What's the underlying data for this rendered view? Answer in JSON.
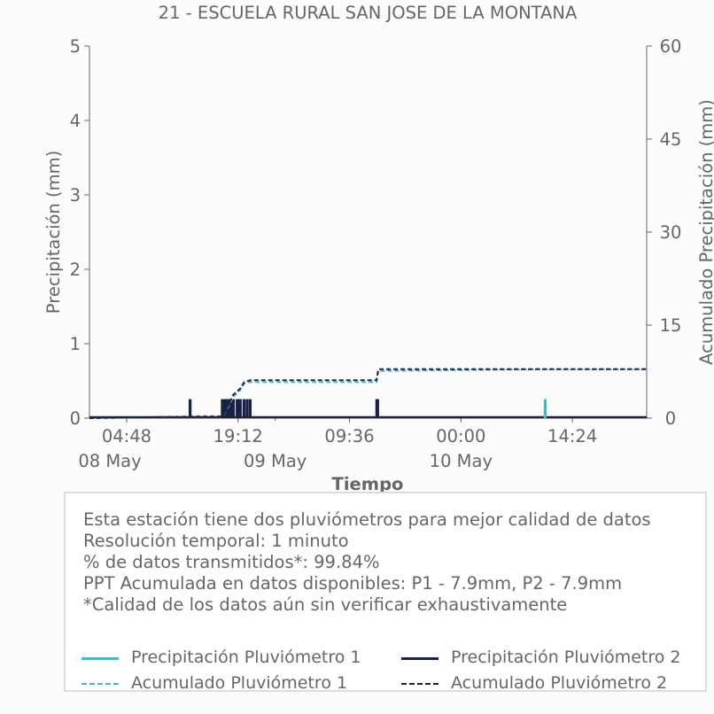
{
  "chart_data": {
    "type": "bar",
    "title": "21 - ESCUELA RURAL SAN JOSE DE LA MONTANA",
    "xlabel": "Tiempo",
    "ylabel": "Precipitación (mm)",
    "y2label": "Acumulado Precipitación (mm)",
    "ylim": [
      0,
      5
    ],
    "y2lim": [
      0,
      60
    ],
    "yticks": [
      0,
      1,
      2,
      3,
      4,
      5
    ],
    "y2ticks": [
      0,
      15,
      30,
      45,
      60
    ],
    "xlim": [
      "2024-05-08 00:00",
      "2024-05-11 00:00"
    ],
    "xtick_labels": [
      {
        "time": "2024-05-08 04:48",
        "label": "04:48",
        "date_label": "08 May"
      },
      {
        "time": "2024-05-08 19:12",
        "label": "19:12",
        "date_label": "09 May"
      },
      {
        "time": "2024-05-09 09:36",
        "label": "09:36",
        "date_label": ""
      },
      {
        "time": "2024-05-10 00:00",
        "label": "00:00",
        "date_label": "10 May"
      },
      {
        "time": "2024-05-10 14:24",
        "label": "14:24",
        "date_label": ""
      }
    ],
    "grid": false,
    "colors": {
      "p1": "#4fb3c4",
      "p2": "#1c2144"
    },
    "series": [
      {
        "name": "Precipitación Pluviómetro 1",
        "kind": "bars",
        "x": [
          "2024-05-08 13:00",
          "2024-05-08 17:10",
          "2024-05-08 17:22",
          "2024-05-08 17:34",
          "2024-05-08 17:46",
          "2024-05-08 17:58",
          "2024-05-08 18:10",
          "2024-05-08 18:22",
          "2024-05-08 18:36",
          "2024-05-08 19:05",
          "2024-05-08 19:17",
          "2024-05-08 19:29",
          "2024-05-08 19:58",
          "2024-05-08 20:22",
          "2024-05-08 20:46",
          "2024-05-09 13:08",
          "2024-05-09 13:14",
          "2024-05-10 10:53"
        ],
        "values": [
          0.254,
          0.254,
          0.254,
          0.254,
          0.254,
          0.254,
          0.254,
          0.254,
          0.254,
          0.254,
          0.254,
          0.254,
          0.254,
          0.254,
          0.254,
          0.254,
          0.254,
          0.254
        ]
      },
      {
        "name": "Precipitación Pluviómetro 2",
        "kind": "bars",
        "x": [
          "2024-05-08 13:00",
          "2024-05-08 17:10",
          "2024-05-08 17:22",
          "2024-05-08 17:34",
          "2024-05-08 17:46",
          "2024-05-08 17:58",
          "2024-05-08 18:10",
          "2024-05-08 18:22",
          "2024-05-08 18:36",
          "2024-05-08 19:05",
          "2024-05-08 19:17",
          "2024-05-08 19:29",
          "2024-05-08 19:58",
          "2024-05-08 20:22",
          "2024-05-08 20:46",
          "2024-05-09 13:08",
          "2024-05-09 13:14"
        ],
        "values": [
          0.254,
          0.254,
          0.254,
          0.254,
          0.254,
          0.254,
          0.254,
          0.254,
          0.254,
          0.254,
          0.254,
          0.254,
          0.254,
          0.254,
          0.254,
          0.254,
          0.254
        ]
      },
      {
        "name": "Acumulado Pluviómetro 1",
        "kind": "line",
        "axis": "right",
        "x": [
          "2024-05-08 00:00",
          "2024-05-08 13:00",
          "2024-05-08 17:10",
          "2024-05-08 18:00",
          "2024-05-08 18:36",
          "2024-05-08 19:05",
          "2024-05-08 19:29",
          "2024-05-08 20:00",
          "2024-05-08 20:46",
          "2024-05-09 13:05",
          "2024-05-09 13:20",
          "2024-05-10 10:53",
          "2024-05-11 00:00"
        ],
        "values": [
          0,
          0.25,
          0.25,
          2.0,
          3.5,
          4.0,
          4.5,
          5.6,
          5.8,
          5.8,
          7.6,
          7.9,
          7.9
        ]
      },
      {
        "name": "Acumulado Pluviómetro 2",
        "kind": "line",
        "axis": "right",
        "x": [
          "2024-05-08 00:00",
          "2024-05-08 13:00",
          "2024-05-08 17:10",
          "2024-05-08 18:00",
          "2024-05-08 18:36",
          "2024-05-08 19:05",
          "2024-05-08 19:29",
          "2024-05-08 20:00",
          "2024-05-08 20:46",
          "2024-05-09 13:05",
          "2024-05-09 13:20",
          "2024-05-11 00:00"
        ],
        "values": [
          0,
          0.25,
          0.25,
          2.3,
          3.8,
          4.3,
          4.8,
          5.8,
          6.1,
          6.1,
          7.9,
          7.9
        ]
      }
    ]
  },
  "info": {
    "lines": [
      "Esta estación tiene dos pluviómetros para mejor calidad de datos",
      "Resolución temporal: 1 minuto",
      "% de datos transmitidos*: 99.84%",
      "PPT Acumulada en datos disponibles: P1 - 7.9mm, P2 - 7.9mm",
      "*Calidad de los datos aún sin verificar exhaustivamente"
    ]
  },
  "legend": {
    "items": [
      {
        "label": "Precipitación Pluviómetro 1",
        "color": "#4fb3c4",
        "style": "solid"
      },
      {
        "label": "Precipitación Pluviómetro 2",
        "color": "#1c2144",
        "style": "solid"
      },
      {
        "label": "Acumulado Pluviómetro 1",
        "color": "#4fb3c4",
        "style": "dashed"
      },
      {
        "label": "Acumulado Pluviómetro 2",
        "color": "#1c2144",
        "style": "dashed"
      }
    ]
  }
}
